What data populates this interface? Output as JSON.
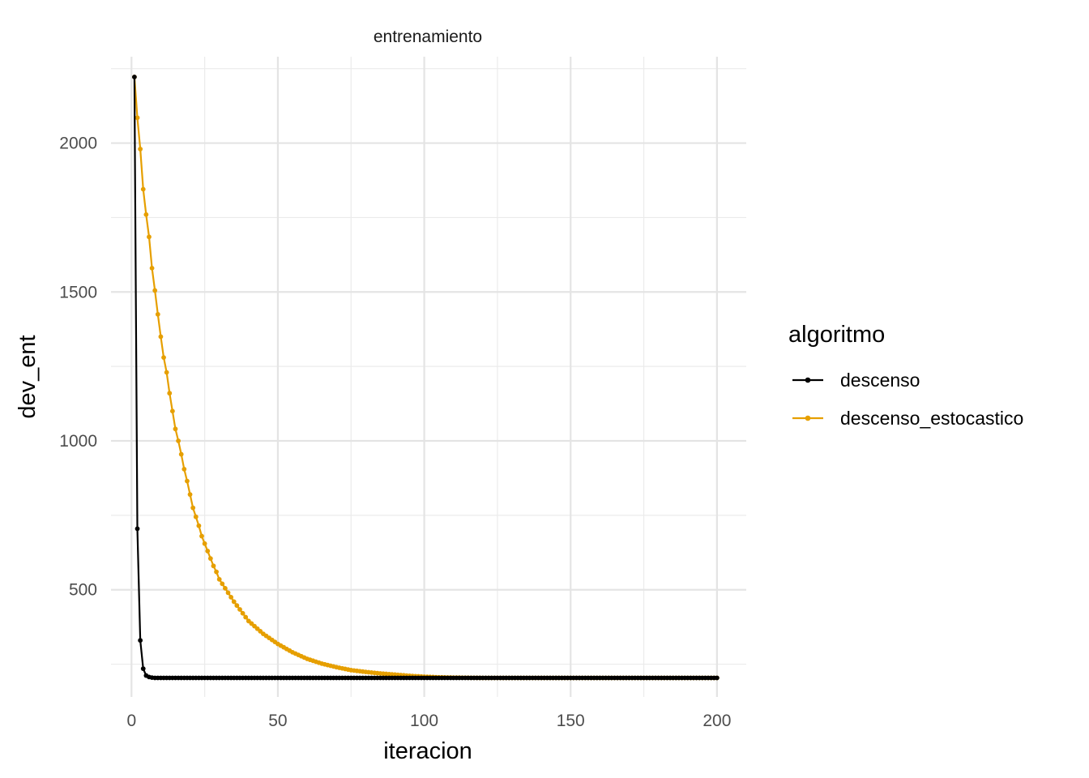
{
  "chart_data": {
    "type": "line",
    "facet_label": "entrenamiento",
    "xlabel": "iteracion",
    "ylabel": "dev_ent",
    "xlim": [
      -7,
      210
    ],
    "ylim": [
      140,
      2290
    ],
    "x_ticks": [
      0,
      50,
      100,
      150,
      200
    ],
    "x_tick_labels": [
      "0",
      "50",
      "100",
      "150",
      "200"
    ],
    "x_minor_ticks": [
      25,
      75,
      125,
      175
    ],
    "y_ticks": [
      500,
      1000,
      1500,
      2000
    ],
    "y_tick_labels": [
      "500",
      "1000",
      "1500",
      "2000"
    ],
    "y_minor_ticks": [
      250,
      750,
      1250,
      1750,
      2250
    ],
    "grid": true,
    "legend": {
      "title": "algoritmo",
      "position": "right"
    },
    "series": [
      {
        "name": "descenso",
        "color": "#000000",
        "x_range": [
          1,
          200
        ],
        "points": [
          [
            1,
            2222
          ],
          [
            2,
            705
          ],
          [
            3,
            330
          ],
          [
            4,
            235
          ],
          [
            5,
            212
          ],
          [
            6,
            207
          ],
          [
            7,
            205
          ]
        ],
        "plateau": 204
      },
      {
        "name": "descenso_estocastico",
        "color": "#E69F00",
        "x_range": [
          1,
          200
        ],
        "points": [
          [
            1,
            2222
          ],
          [
            2,
            2085
          ],
          [
            3,
            1980
          ],
          [
            4,
            1845
          ],
          [
            5,
            1760
          ],
          [
            6,
            1685
          ],
          [
            7,
            1580
          ],
          [
            8,
            1505
          ],
          [
            9,
            1425
          ],
          [
            10,
            1350
          ],
          [
            11,
            1280
          ],
          [
            12,
            1230
          ],
          [
            13,
            1160
          ],
          [
            14,
            1100
          ],
          [
            15,
            1040
          ],
          [
            16,
            1000
          ],
          [
            17,
            955
          ],
          [
            18,
            905
          ],
          [
            19,
            865
          ],
          [
            20,
            820
          ],
          [
            21,
            775
          ],
          [
            22,
            745
          ],
          [
            23,
            715
          ],
          [
            24,
            680
          ],
          [
            25,
            655
          ],
          [
            26,
            630
          ],
          [
            27,
            605
          ],
          [
            28,
            580
          ],
          [
            29,
            560
          ],
          [
            30,
            535
          ],
          [
            32,
            505
          ],
          [
            35,
            460
          ],
          [
            40,
            395
          ],
          [
            45,
            352
          ],
          [
            50,
            318
          ],
          [
            55,
            290
          ],
          [
            60,
            268
          ],
          [
            65,
            252
          ],
          [
            70,
            240
          ],
          [
            75,
            230
          ],
          [
            80,
            224
          ],
          [
            85,
            219
          ],
          [
            90,
            215
          ],
          [
            95,
            211
          ],
          [
            100,
            208
          ],
          [
            105,
            206
          ],
          [
            110,
            205
          ],
          [
            120,
            204
          ],
          [
            200,
            204
          ]
        ]
      }
    ]
  }
}
